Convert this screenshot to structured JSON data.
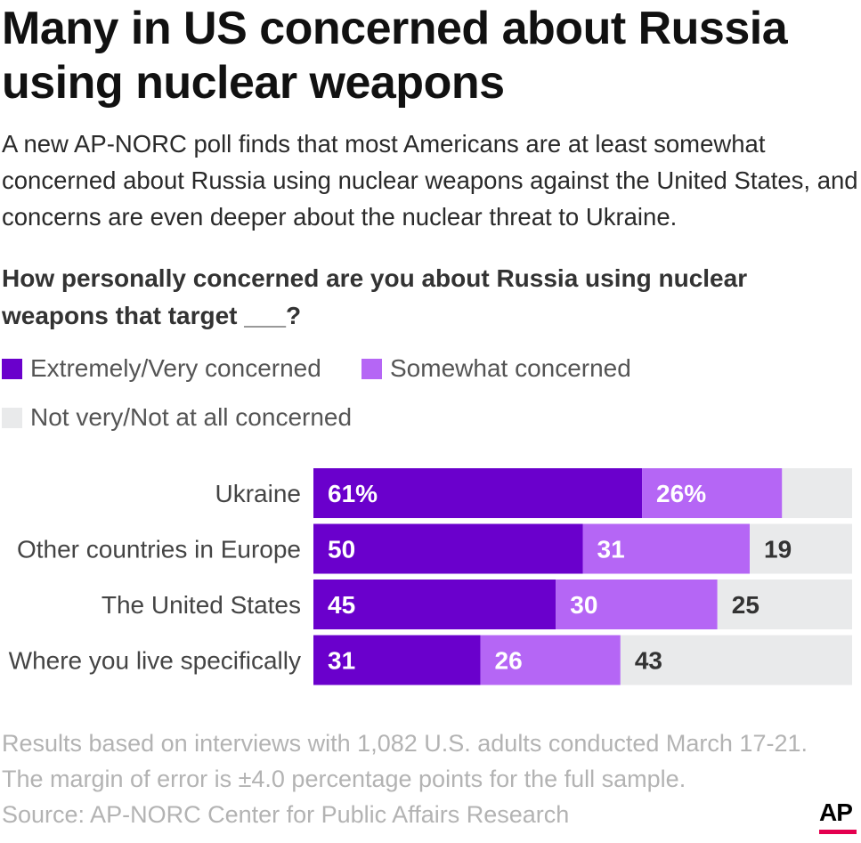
{
  "header": {
    "title": "Many in US concerned about Russia using nuclear weapons",
    "subtitle": "A new AP-NORC poll finds that most Americans are at least somewhat concerned about Russia using nuclear weapons against the United States, and concerns are even deeper about the nuclear threat to Ukraine.",
    "question": "How personally concerned are you about Russia using nuclear weapons that target ___?"
  },
  "legend": {
    "items": [
      {
        "label": "Extremely/Very concerned",
        "color": "#6a00cc"
      },
      {
        "label": "Somewhat concerned",
        "color": "#b566f5"
      },
      {
        "label": "Not very/Not at all concerned",
        "color": "#e9eaeb"
      }
    ]
  },
  "footer": {
    "note1": "Results based on interviews with 1,082 U.S. adults conducted March 17-21.",
    "note2": "The margin of error is ±4.0 percentage points for the full sample.",
    "source": "Source: AP-NORC Center for Public Affairs Research",
    "logo": "AP",
    "logo_accent": "#e4004f"
  },
  "chart_data": {
    "type": "bar",
    "orientation": "horizontal",
    "stacked": true,
    "categories": [
      "Ukraine",
      "Other countries in Europe",
      "The United States",
      "Where you live specifically"
    ],
    "series": [
      {
        "name": "Extremely/Very concerned",
        "values": [
          61,
          50,
          45,
          31
        ],
        "labels": [
          "61%",
          "50",
          "45",
          "31"
        ],
        "color": "#6a00cc",
        "label_color": "#ffffff"
      },
      {
        "name": "Somewhat concerned",
        "values": [
          26,
          31,
          30,
          26
        ],
        "labels": [
          "26%",
          "31",
          "30",
          "26"
        ],
        "color": "#b566f5",
        "label_color": "#ffffff"
      },
      {
        "name": "Not very/Not at all concerned",
        "values": [
          13,
          19,
          25,
          43
        ],
        "labels": [
          "",
          "19",
          "25",
          "43"
        ],
        "color": "#e9eaeb",
        "label_color": "#333333"
      }
    ],
    "xlim": [
      0,
      100
    ],
    "legend_position": "top-left",
    "grid": false
  }
}
